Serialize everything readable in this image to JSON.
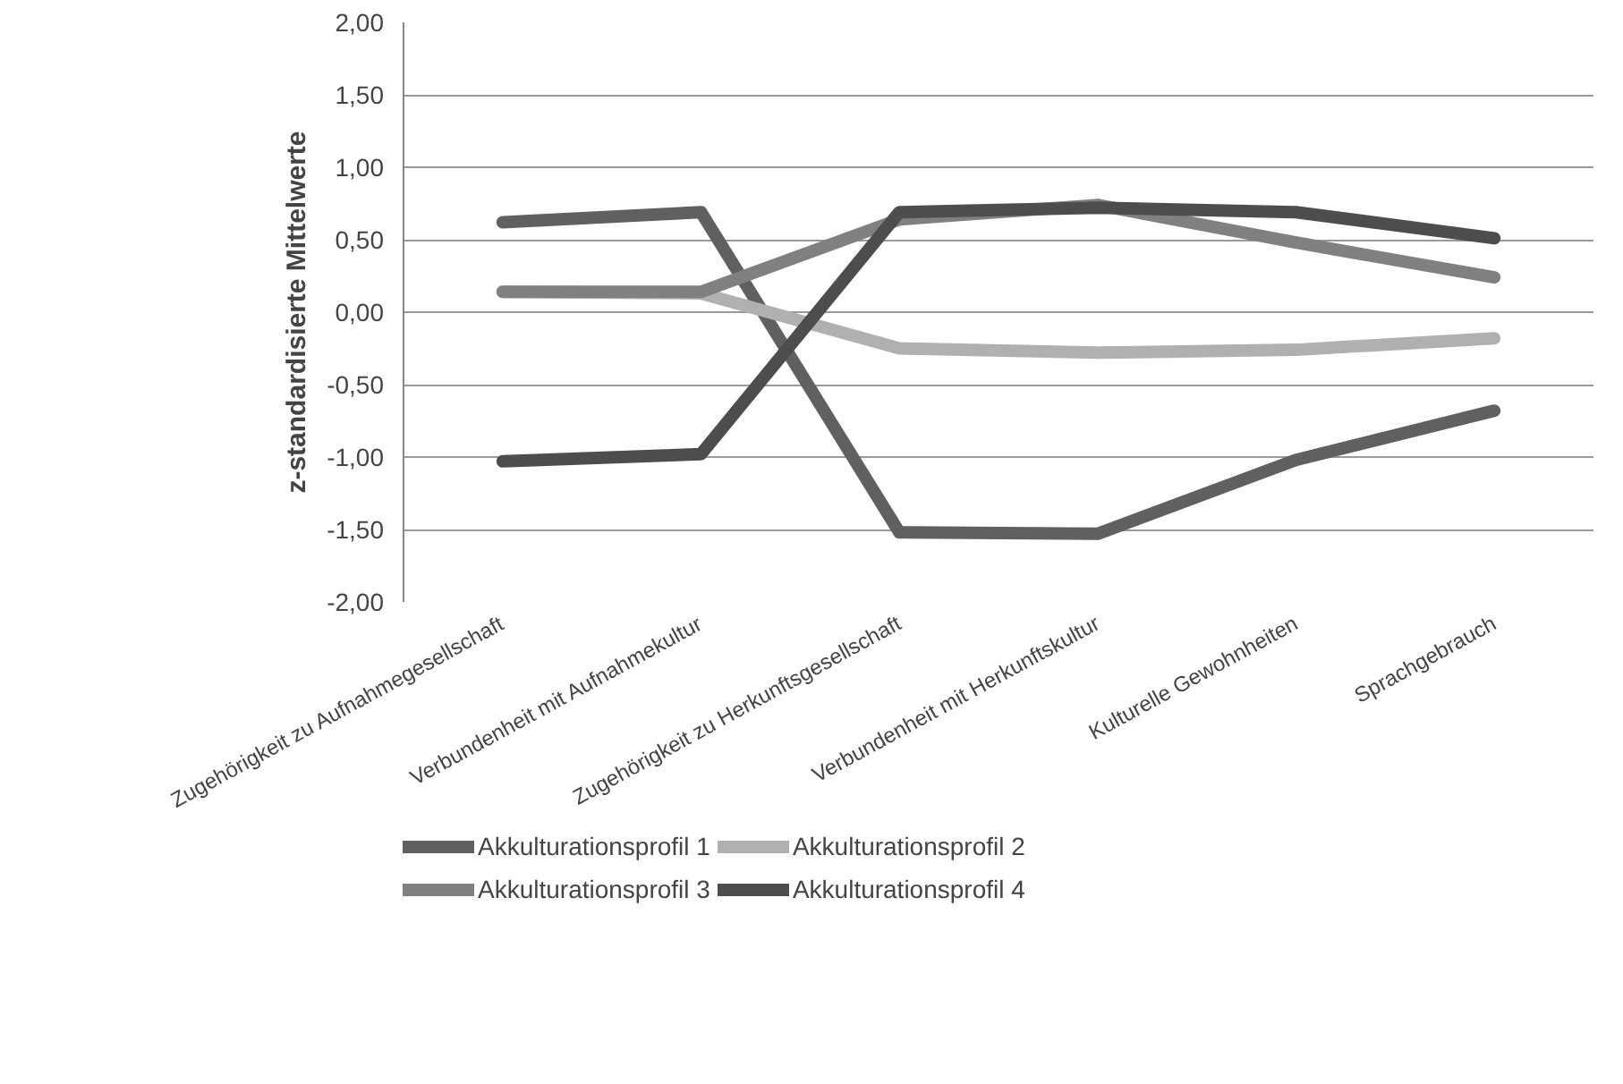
{
  "chart_data": {
    "type": "line",
    "ylabel": "z-standardisierte Mittelwerte",
    "categories": [
      "Zugehörigkeit zu Aufnahmegesellschaft",
      "Verbundenheit mit Aufnahmekultur",
      "Zugehörigkeit zu Herkunftsgesellschaft",
      "Verbundenheit mit Herkunftskultur",
      "Kulturelle Gewohnheiten",
      "Sprachgebrauch"
    ],
    "series": [
      {
        "name": "Akkulturationsprofil 1",
        "color": "#606060",
        "values": [
          0.62,
          0.69,
          -1.52,
          -1.53,
          -1.02,
          -0.68
        ]
      },
      {
        "name": "Akkulturationsprofil 2",
        "color": "#b0b0b0",
        "values": [
          0.14,
          0.13,
          -0.25,
          -0.28,
          -0.26,
          -0.18
        ]
      },
      {
        "name": "Akkulturationsprofil 3",
        "color": "#808080",
        "values": [
          0.14,
          0.14,
          0.64,
          0.74,
          0.48,
          0.24
        ]
      },
      {
        "name": "Akkulturationsprofil 4",
        "color": "#4d4d4d",
        "values": [
          -1.03,
          -0.98,
          0.69,
          0.72,
          0.69,
          0.51
        ]
      }
    ],
    "ylim": [
      -2,
      2
    ],
    "yticks": [
      {
        "value": -2,
        "label": "-2,00"
      },
      {
        "value": -1.5,
        "label": "-1,50"
      },
      {
        "value": -1,
        "label": "-1,00"
      },
      {
        "value": -0.5,
        "label": "-0,50"
      },
      {
        "value": 0,
        "label": "0,00"
      },
      {
        "value": 0.5,
        "label": "0,50"
      },
      {
        "value": 1,
        "label": "1,00"
      },
      {
        "value": 1.5,
        "label": "1,50"
      },
      {
        "value": 2,
        "label": "2,00"
      }
    ],
    "grid": "y",
    "legend": "bottom",
    "marker": "none",
    "line_style": "solid"
  }
}
